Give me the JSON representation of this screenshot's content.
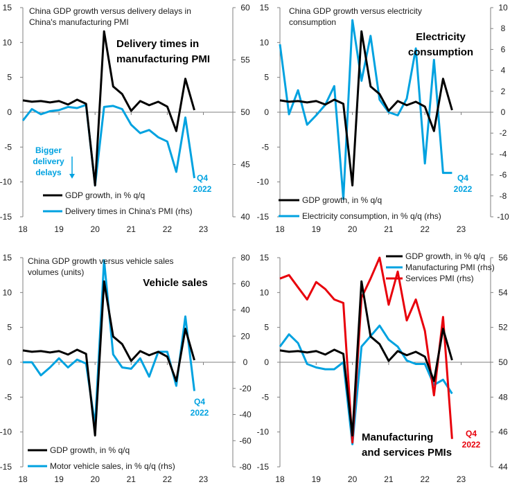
{
  "colors": {
    "gdp": "#000000",
    "blue": "#00a2e0",
    "red": "#e8000b",
    "axis": "#7f7f7f"
  },
  "chart_data": [
    {
      "type": "line",
      "subtitle": [
        "China GDP growth versus delivery delays in",
        "China's manufacturing PMI"
      ],
      "heading": [
        "Delivery times in",
        "manufacturing PMI"
      ],
      "xticks": [
        "18",
        "19",
        "20",
        "21",
        "22",
        "23"
      ],
      "ylim": [
        -15,
        15
      ],
      "yticks": [
        -15,
        -10,
        -5,
        0,
        5,
        10,
        15
      ],
      "y2lim": [
        40,
        60
      ],
      "y2ticks": [
        40,
        45,
        50,
        55,
        60
      ],
      "series": [
        {
          "name": "GDP growth, in % q/q",
          "axis": "left",
          "color": "gdp",
          "x": [
            2018.0,
            2018.25,
            2018.5,
            2018.75,
            2019.0,
            2019.25,
            2019.5,
            2019.75,
            2020.0,
            2020.25,
            2020.5,
            2020.75,
            2021.0,
            2021.25,
            2021.5,
            2021.75,
            2022.0,
            2022.25,
            2022.5,
            2022.75
          ],
          "y": [
            1.7,
            1.5,
            1.6,
            1.4,
            1.6,
            1.1,
            1.8,
            1.2,
            -10.5,
            11.6,
            3.7,
            2.6,
            0.2,
            1.6,
            1.0,
            1.5,
            0.8,
            -2.7,
            4.8,
            0.3
          ]
        },
        {
          "name": "Delivery times in China's PMI (rhs)",
          "axis": "right",
          "color": "blue",
          "x": [
            2018.0,
            2018.25,
            2018.5,
            2018.75,
            2019.0,
            2019.25,
            2019.5,
            2019.75,
            2020.0,
            2020.25,
            2020.5,
            2020.75,
            2021.0,
            2021.25,
            2021.5,
            2021.75,
            2022.0,
            2022.25,
            2022.5,
            2022.75
          ],
          "y": [
            49.2,
            50.3,
            49.8,
            50.1,
            50.2,
            50.5,
            50.4,
            50.7,
            43.0,
            50.5,
            50.6,
            50.3,
            48.8,
            48.0,
            48.3,
            47.6,
            47.2,
            44.3,
            49.5,
            43.7
          ]
        }
      ],
      "annotations": [
        {
          "lines": [
            "Bigger",
            "delivery",
            "delays"
          ],
          "color": "blue"
        },
        {
          "lines": [
            "Q4",
            "2022"
          ],
          "color": "blue"
        }
      ],
      "legend_position": "bottom-left"
    },
    {
      "type": "line",
      "subtitle": [
        "China GDP growth versus electricity",
        "consumption"
      ],
      "heading": [
        "Electricity",
        "consumption"
      ],
      "xticks": [
        "18",
        "19",
        "20",
        "21",
        "22",
        "23"
      ],
      "ylim": [
        -15,
        15
      ],
      "yticks": [
        -15,
        -10,
        -5,
        0,
        5,
        10,
        15
      ],
      "y2lim": [
        -10,
        10
      ],
      "y2ticks": [
        -10,
        -8,
        -6,
        -4,
        -2,
        0,
        2,
        4,
        6,
        8,
        10
      ],
      "series": [
        {
          "name": "GDP growth, in % q/q",
          "axis": "left",
          "color": "gdp",
          "x": [
            2018.0,
            2018.25,
            2018.5,
            2018.75,
            2019.0,
            2019.25,
            2019.5,
            2019.75,
            2020.0,
            2020.25,
            2020.5,
            2020.75,
            2021.0,
            2021.25,
            2021.5,
            2021.75,
            2022.0,
            2022.25,
            2022.5,
            2022.75
          ],
          "y": [
            1.7,
            1.5,
            1.6,
            1.4,
            1.6,
            1.1,
            1.8,
            1.2,
            -10.5,
            11.6,
            3.7,
            2.6,
            0.2,
            1.6,
            1.0,
            1.5,
            0.8,
            -2.7,
            4.8,
            0.3
          ]
        },
        {
          "name": "Electricity consumption, in % q/q (rhs)",
          "axis": "right",
          "color": "blue",
          "x": [
            2018.0,
            2018.25,
            2018.5,
            2018.75,
            2019.0,
            2019.25,
            2019.5,
            2019.75,
            2020.0,
            2020.25,
            2020.5,
            2020.75,
            2021.0,
            2021.25,
            2021.5,
            2021.75,
            2022.0,
            2022.25,
            2022.5,
            2022.75
          ],
          "y": [
            6.5,
            -0.2,
            2.1,
            -1.2,
            -0.3,
            0.7,
            2.5,
            -8.3,
            8.8,
            3.0,
            7.3,
            1.2,
            0.0,
            -0.3,
            1.3,
            6.1,
            -4.9,
            5.0,
            -5.8,
            -5.8
          ]
        }
      ],
      "annotations": [
        {
          "lines": [
            "Q4",
            "2022"
          ],
          "color": "blue"
        }
      ],
      "legend_position": "bottom-left"
    },
    {
      "type": "line",
      "subtitle": [
        "China GDP growth versus vehicle sales",
        "volumes (units)"
      ],
      "heading": [
        "Vehicle sales"
      ],
      "xticks": [
        "18",
        "19",
        "20",
        "21",
        "22",
        "23"
      ],
      "ylim": [
        -15,
        15
      ],
      "yticks": [
        -15,
        -10,
        -5,
        0,
        5,
        10,
        15
      ],
      "y2lim": [
        -80,
        80
      ],
      "y2ticks": [
        -80,
        -60,
        -40,
        -20,
        0,
        20,
        40,
        60,
        80
      ],
      "series": [
        {
          "name": "GDP growth, in % q/q",
          "axis": "left",
          "color": "gdp",
          "x": [
            2018.0,
            2018.25,
            2018.5,
            2018.75,
            2019.0,
            2019.25,
            2019.5,
            2019.75,
            2020.0,
            2020.25,
            2020.5,
            2020.75,
            2021.0,
            2021.25,
            2021.5,
            2021.75,
            2022.0,
            2022.25,
            2022.5,
            2022.75
          ],
          "y": [
            1.7,
            1.5,
            1.6,
            1.4,
            1.6,
            1.1,
            1.8,
            1.2,
            -10.5,
            11.6,
            3.7,
            2.6,
            0.2,
            1.6,
            1.0,
            1.5,
            0.8,
            -2.7,
            4.8,
            0.3
          ]
        },
        {
          "name": "Motor vehicle sales, in % q/q (rhs)",
          "axis": "right",
          "color": "blue",
          "x": [
            2018.0,
            2018.25,
            2018.5,
            2018.75,
            2019.0,
            2019.25,
            2019.5,
            2019.75,
            2020.0,
            2020.25,
            2020.5,
            2020.75,
            2021.0,
            2021.25,
            2021.5,
            2021.75,
            2022.0,
            2022.25,
            2022.5,
            2022.75
          ],
          "y": [
            0,
            0,
            -10,
            -4,
            3,
            -4,
            2,
            -1,
            -48,
            78,
            6,
            -4,
            -5,
            3,
            -11,
            8,
            8,
            -18,
            35,
            -22
          ]
        }
      ],
      "annotations": [
        {
          "lines": [
            "Q4",
            "2022"
          ],
          "color": "blue"
        }
      ],
      "legend_position": "bottom-left"
    },
    {
      "type": "line",
      "subtitle": [],
      "heading": [
        "Manufacturing",
        "and services PMIs"
      ],
      "xticks": [
        "18",
        "19",
        "20",
        "21",
        "22",
        "23"
      ],
      "ylim": [
        -15,
        15
      ],
      "yticks": [
        -15,
        -10,
        -5,
        0,
        5,
        10,
        15
      ],
      "y2lim": [
        44,
        56
      ],
      "y2ticks": [
        44,
        46,
        48,
        50,
        52,
        54,
        56
      ],
      "series": [
        {
          "name": "GDP growth, in % q/q",
          "axis": "left",
          "color": "gdp",
          "x": [
            2018.0,
            2018.25,
            2018.5,
            2018.75,
            2019.0,
            2019.25,
            2019.5,
            2019.75,
            2020.0,
            2020.25,
            2020.5,
            2020.75,
            2021.0,
            2021.25,
            2021.5,
            2021.75,
            2022.0,
            2022.25,
            2022.5,
            2022.75
          ],
          "y": [
            1.7,
            1.5,
            1.6,
            1.4,
            1.6,
            1.1,
            1.8,
            1.2,
            -10.5,
            11.6,
            3.7,
            2.6,
            0.2,
            1.6,
            1.0,
            1.5,
            0.8,
            -2.7,
            4.8,
            0.3
          ]
        },
        {
          "name": "Manufacturing PMI (rhs)",
          "axis": "right",
          "color": "blue",
          "x": [
            2018.0,
            2018.25,
            2018.5,
            2018.75,
            2019.0,
            2019.25,
            2019.5,
            2019.75,
            2020.0,
            2020.25,
            2020.5,
            2020.75,
            2021.0,
            2021.25,
            2021.5,
            2021.75,
            2022.0,
            2022.25,
            2022.5,
            2022.75
          ],
          "y": [
            50.9,
            51.6,
            51.1,
            49.9,
            49.7,
            49.6,
            49.6,
            50.0,
            45.3,
            50.9,
            51.5,
            52.1,
            51.3,
            50.9,
            50.1,
            49.9,
            49.9,
            48.7,
            49.0,
            48.2
          ]
        },
        {
          "name": "Services PMI (rhs)",
          "axis": "right",
          "color": "red",
          "x": [
            2018.0,
            2018.25,
            2018.5,
            2018.75,
            2019.0,
            2019.25,
            2019.5,
            2019.75,
            2020.0,
            2020.25,
            2020.5,
            2020.75,
            2021.0,
            2021.25,
            2021.5,
            2021.75,
            2022.0,
            2022.25,
            2022.5,
            2022.75
          ],
          "y": [
            54.8,
            55.0,
            54.3,
            53.6,
            54.6,
            54.2,
            53.6,
            53.4,
            45.4,
            53.7,
            54.8,
            56.0,
            53.3,
            55.2,
            52.4,
            53.6,
            51.8,
            48.1,
            52.6,
            45.6
          ]
        }
      ],
      "annotations": [
        {
          "lines": [
            "Q4",
            "2022"
          ],
          "color": "red"
        }
      ],
      "legend_position": "top-right"
    }
  ]
}
